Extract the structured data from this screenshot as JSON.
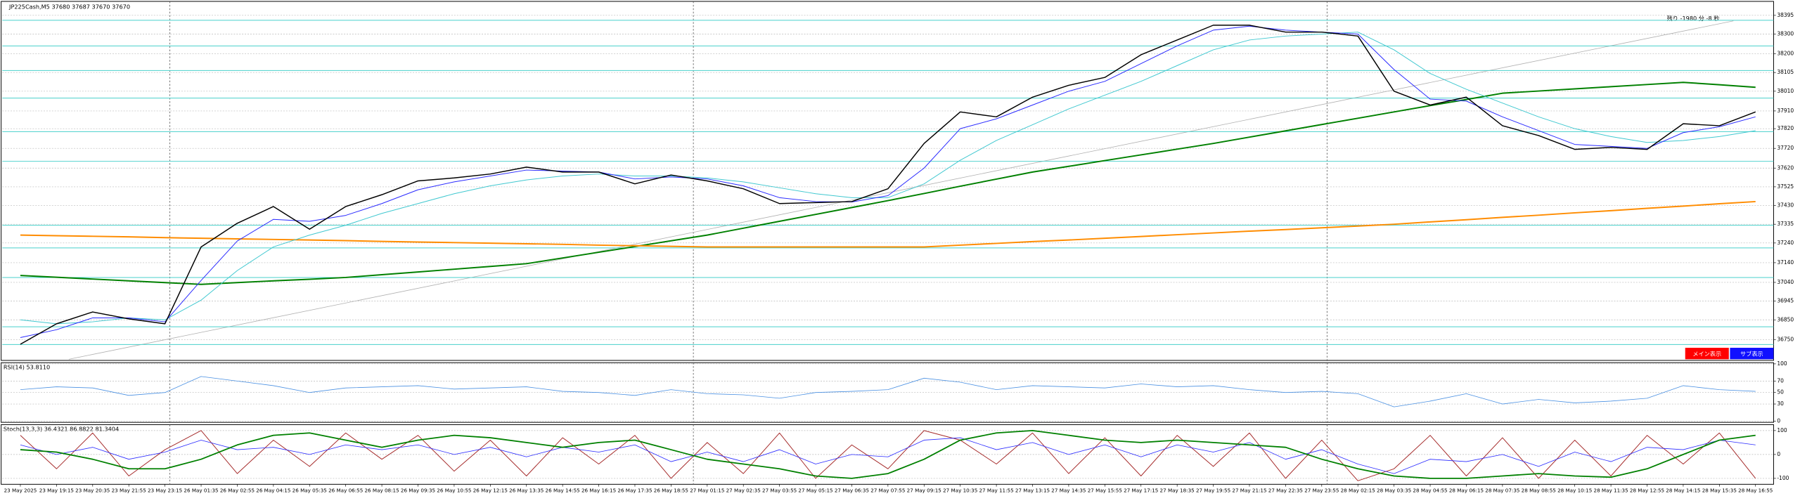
{
  "chart_data": [
    {
      "type": "line",
      "title": "JP225Cash,M5  37680 37687 37670 37670",
      "annotation": "残り -1980 分 -8 秒",
      "categories": [
        "23 May 2025",
        "23 May 19:15",
        "23 May 20:35",
        "23 May 21:55",
        "23 May 23:15",
        "26 May 01:35",
        "26 May 02:55",
        "26 May 04:15",
        "26 May 05:35",
        "26 May 06:55",
        "26 May 08:15",
        "26 May 09:35",
        "26 May 10:55",
        "26 May 12:15",
        "26 May 13:35",
        "26 May 14:55",
        "26 May 16:15",
        "26 May 17:35",
        "26 May 18:55",
        "27 May 01:15",
        "27 May 02:35",
        "27 May 03:55",
        "27 May 05:15",
        "27 May 06:35",
        "27 May 07:55",
        "27 May 09:15",
        "27 May 10:35",
        "27 May 11:55",
        "27 May 13:15",
        "27 May 14:35",
        "27 May 15:55",
        "27 May 17:15",
        "27 May 18:35",
        "27 May 19:55",
        "27 May 21:15",
        "27 May 22:35",
        "27 May 23:55",
        "28 May 02:15",
        "28 May 03:35",
        "28 May 04:55",
        "28 May 06:15",
        "28 May 07:35",
        "28 May 08:55",
        "28 May 10:15",
        "28 May 11:35",
        "28 May 12:55",
        "28 May 14:15",
        "28 May 15:35",
        "28 May 16:55"
      ],
      "series": [
        {
          "color": "#008000",
          "width": 1.2,
          "values": [
            37075,
            37066,
            37057,
            37048,
            37039,
            37030,
            37039,
            37048,
            37056,
            37065,
            37079,
            37093,
            37107,
            37121,
            37135,
            37164,
            37193,
            37222,
            37251,
            37280,
            37315,
            37350,
            37385,
            37420,
            37455,
            37491,
            37528,
            37564,
            37600,
            37629,
            37658,
            37687,
            37716,
            37745,
            37777,
            37809,
            37841,
            37873,
            37905,
            37937,
            37968,
            38000,
            38011,
            38022,
            38033,
            38044,
            38055,
            38043,
            38030
          ]
        },
        {
          "color": "#ff8c00",
          "width": 1.2,
          "values": [
            37280,
            37277,
            37274,
            37271,
            37267,
            37264,
            37261,
            37258,
            37255,
            37252,
            37248,
            37245,
            37242,
            37239,
            37236,
            37233,
            37229,
            37226,
            37223,
            37220,
            37220,
            37220,
            37220,
            37220,
            37220,
            37220,
            37229,
            37238,
            37247,
            37255,
            37264,
            37273,
            37282,
            37291,
            37300,
            37308,
            37317,
            37326,
            37335,
            37347,
            37358,
            37370,
            37381,
            37393,
            37404,
            37416,
            37427,
            37439,
            37450
          ]
        },
        {
          "color": "#40c8d0",
          "width": 0.6,
          "values": [
            36850,
            36830,
            36840,
            36860,
            36850,
            36950,
            37100,
            37220,
            37280,
            37330,
            37390,
            37440,
            37490,
            37530,
            37560,
            37580,
            37590,
            37580,
            37580,
            37570,
            37550,
            37520,
            37490,
            37470,
            37470,
            37540,
            37660,
            37760,
            37840,
            37920,
            37990,
            38060,
            38140,
            38220,
            38270,
            38290,
            38300,
            38310,
            38220,
            38100,
            38020,
            37950,
            37880,
            37820,
            37780,
            37750,
            37760,
            37780,
            37810
          ]
        },
        {
          "color": "#2a2aff",
          "width": 0.6,
          "values": [
            36760,
            36800,
            36860,
            36860,
            36840,
            37050,
            37250,
            37360,
            37350,
            37380,
            37440,
            37510,
            37550,
            37580,
            37610,
            37605,
            37600,
            37565,
            37575,
            37565,
            37530,
            37470,
            37450,
            37448,
            37480,
            37620,
            37820,
            37870,
            37940,
            38010,
            38060,
            38150,
            38240,
            38320,
            38340,
            38320,
            38310,
            38300,
            38120,
            37970,
            37960,
            37880,
            37810,
            37740,
            37730,
            37720,
            37800,
            37830,
            37880
          ]
        },
        {
          "color": "#000000",
          "width": 0.9,
          "values": [
            36726,
            36830,
            36890,
            36855,
            36830,
            37220,
            37340,
            37425,
            37310,
            37425,
            37485,
            37555,
            37570,
            37590,
            37625,
            37600,
            37600,
            37540,
            37585,
            37555,
            37515,
            37440,
            37445,
            37450,
            37515,
            37745,
            37905,
            37880,
            37980,
            38040,
            38080,
            38195,
            38270,
            38345,
            38345,
            38310,
            38310,
            38290,
            38010,
            37940,
            37980,
            37835,
            37785,
            37715,
            37725,
            37715,
            37845,
            37835,
            37905
          ]
        }
      ],
      "hlines": {
        "color": "#48d1cc",
        "values": [
          38370,
          38240,
          38115,
          37975,
          37805,
          37655,
          37330,
          37215,
          37065,
          36815,
          36725
        ]
      },
      "ylim": [
        36650,
        38460
      ],
      "yticks": [
        36750,
        36850,
        36945,
        37040,
        37140,
        37240,
        37335,
        37430,
        37525,
        37620,
        37720,
        37820,
        37910,
        38010,
        38105,
        38200,
        38300,
        38395
      ],
      "grid": true
    },
    {
      "type": "line",
      "title": "RSI(14) 53.8110",
      "series": [
        {
          "color": "#4a90e2",
          "width": 0.5,
          "values": [
            55,
            60,
            58,
            45,
            50,
            78,
            70,
            62,
            50,
            58,
            60,
            62,
            56,
            58,
            60,
            52,
            50,
            45,
            55,
            48,
            46,
            40,
            50,
            52,
            55,
            75,
            68,
            55,
            62,
            60,
            58,
            65,
            60,
            62,
            55,
            50,
            52,
            48,
            25,
            35,
            48,
            30,
            38,
            32,
            35,
            40,
            62,
            55,
            52
          ]
        }
      ],
      "ylim": [
        0,
        100
      ],
      "yticks": [
        0,
        30,
        50,
        70,
        100
      ],
      "grid": true
    },
    {
      "type": "line",
      "title": "Stoch(13,3,3) 36.4321 86.8822 81.3404",
      "series": [
        {
          "color": "#a52a2a",
          "width": 0.6,
          "values": [
            80,
            -60,
            90,
            -90,
            20,
            100,
            -80,
            60,
            -50,
            90,
            -20,
            80,
            -70,
            60,
            -90,
            70,
            -40,
            80,
            -100,
            50,
            -80,
            90,
            -100,
            40,
            -60,
            100,
            60,
            -40,
            90,
            -80,
            70,
            -90,
            80,
            -50,
            90,
            -100,
            60,
            -110,
            -60,
            80,
            -90,
            70,
            -100,
            60,
            -90,
            80,
            -40,
            90,
            -100
          ]
        },
        {
          "color": "#2a2aff",
          "width": 0.5,
          "values": [
            40,
            0,
            30,
            -20,
            10,
            60,
            20,
            30,
            0,
            40,
            20,
            40,
            0,
            30,
            -10,
            30,
            10,
            40,
            -30,
            10,
            -30,
            20,
            -40,
            0,
            -10,
            60,
            70,
            20,
            50,
            0,
            40,
            -10,
            40,
            10,
            50,
            -20,
            20,
            -40,
            -80,
            -20,
            -30,
            0,
            -50,
            10,
            -30,
            30,
            20,
            60,
            40
          ]
        },
        {
          "color": "#008000",
          "width": 1.1,
          "values": [
            20,
            10,
            -20,
            -60,
            -60,
            -20,
            40,
            80,
            90,
            60,
            30,
            60,
            80,
            70,
            50,
            30,
            50,
            60,
            20,
            -20,
            -40,
            -60,
            -90,
            -100,
            -80,
            -20,
            60,
            90,
            100,
            80,
            60,
            50,
            60,
            50,
            40,
            30,
            -20,
            -60,
            -90,
            -100,
            -100,
            -90,
            -80,
            -90,
            -95,
            -60,
            0,
            60,
            80
          ]
        }
      ],
      "ylim": [
        -120,
        120
      ],
      "yticks": [
        -100,
        0,
        100
      ],
      "grid": true
    }
  ],
  "buttons": [
    "メイン表示",
    "サブ表示"
  ]
}
